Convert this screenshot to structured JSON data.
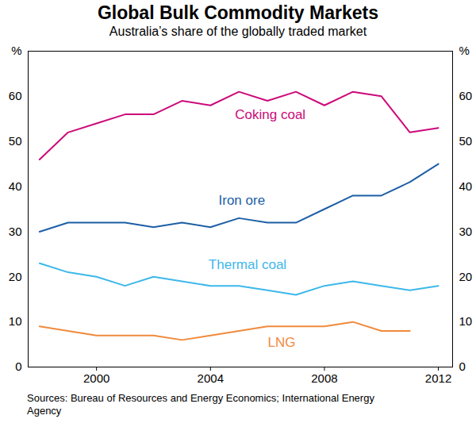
{
  "chart_data": {
    "type": "line",
    "title": "Global Bulk Commodity Markets",
    "subtitle": "Australia’s share of the globally traded market",
    "source": "Sources: Bureau of Resources and Energy Economics; International Energy Agency",
    "x": [
      1998,
      1999,
      2000,
      2001,
      2002,
      2003,
      2004,
      2005,
      2006,
      2007,
      2008,
      2009,
      2010,
      2011,
      2012
    ],
    "xlim": [
      1997.6,
      2012.5
    ],
    "xticks": [
      2000,
      2004,
      2008,
      2012
    ],
    "ylim": [
      0,
      70
    ],
    "yticks": [
      0,
      10,
      20,
      30,
      40,
      50,
      60,
      {
        "value": 70,
        "label": "%"
      }
    ],
    "grid": false,
    "series": [
      {
        "name": "Coking coal",
        "color": "#cc0a7a",
        "label_x": 2006.1,
        "label_y": 56,
        "values": [
          46,
          52,
          54,
          56,
          56,
          59,
          58,
          61,
          59,
          61,
          58,
          61,
          60,
          52,
          53
        ]
      },
      {
        "name": "Iron ore",
        "color": "#1d5fa6",
        "label_x": 2005.1,
        "label_y": 37,
        "values": [
          30,
          32,
          32,
          32,
          31,
          32,
          31,
          33,
          32,
          32,
          35,
          38,
          38,
          41,
          45
        ]
      },
      {
        "name": "Thermal coal",
        "color": "#3db8ea",
        "label_x": 2005.3,
        "label_y": 22.7,
        "values": [
          23,
          21,
          20,
          18,
          20,
          19,
          18,
          18,
          17,
          16,
          18,
          19,
          18,
          17,
          18
        ]
      },
      {
        "name": "LNG",
        "color": "#f08a3c",
        "label_x": 2006.5,
        "label_y": 5.4,
        "values": [
          9,
          8,
          7,
          7,
          7,
          6,
          7,
          8,
          9,
          9,
          9,
          10,
          8,
          8,
          null
        ]
      }
    ]
  }
}
